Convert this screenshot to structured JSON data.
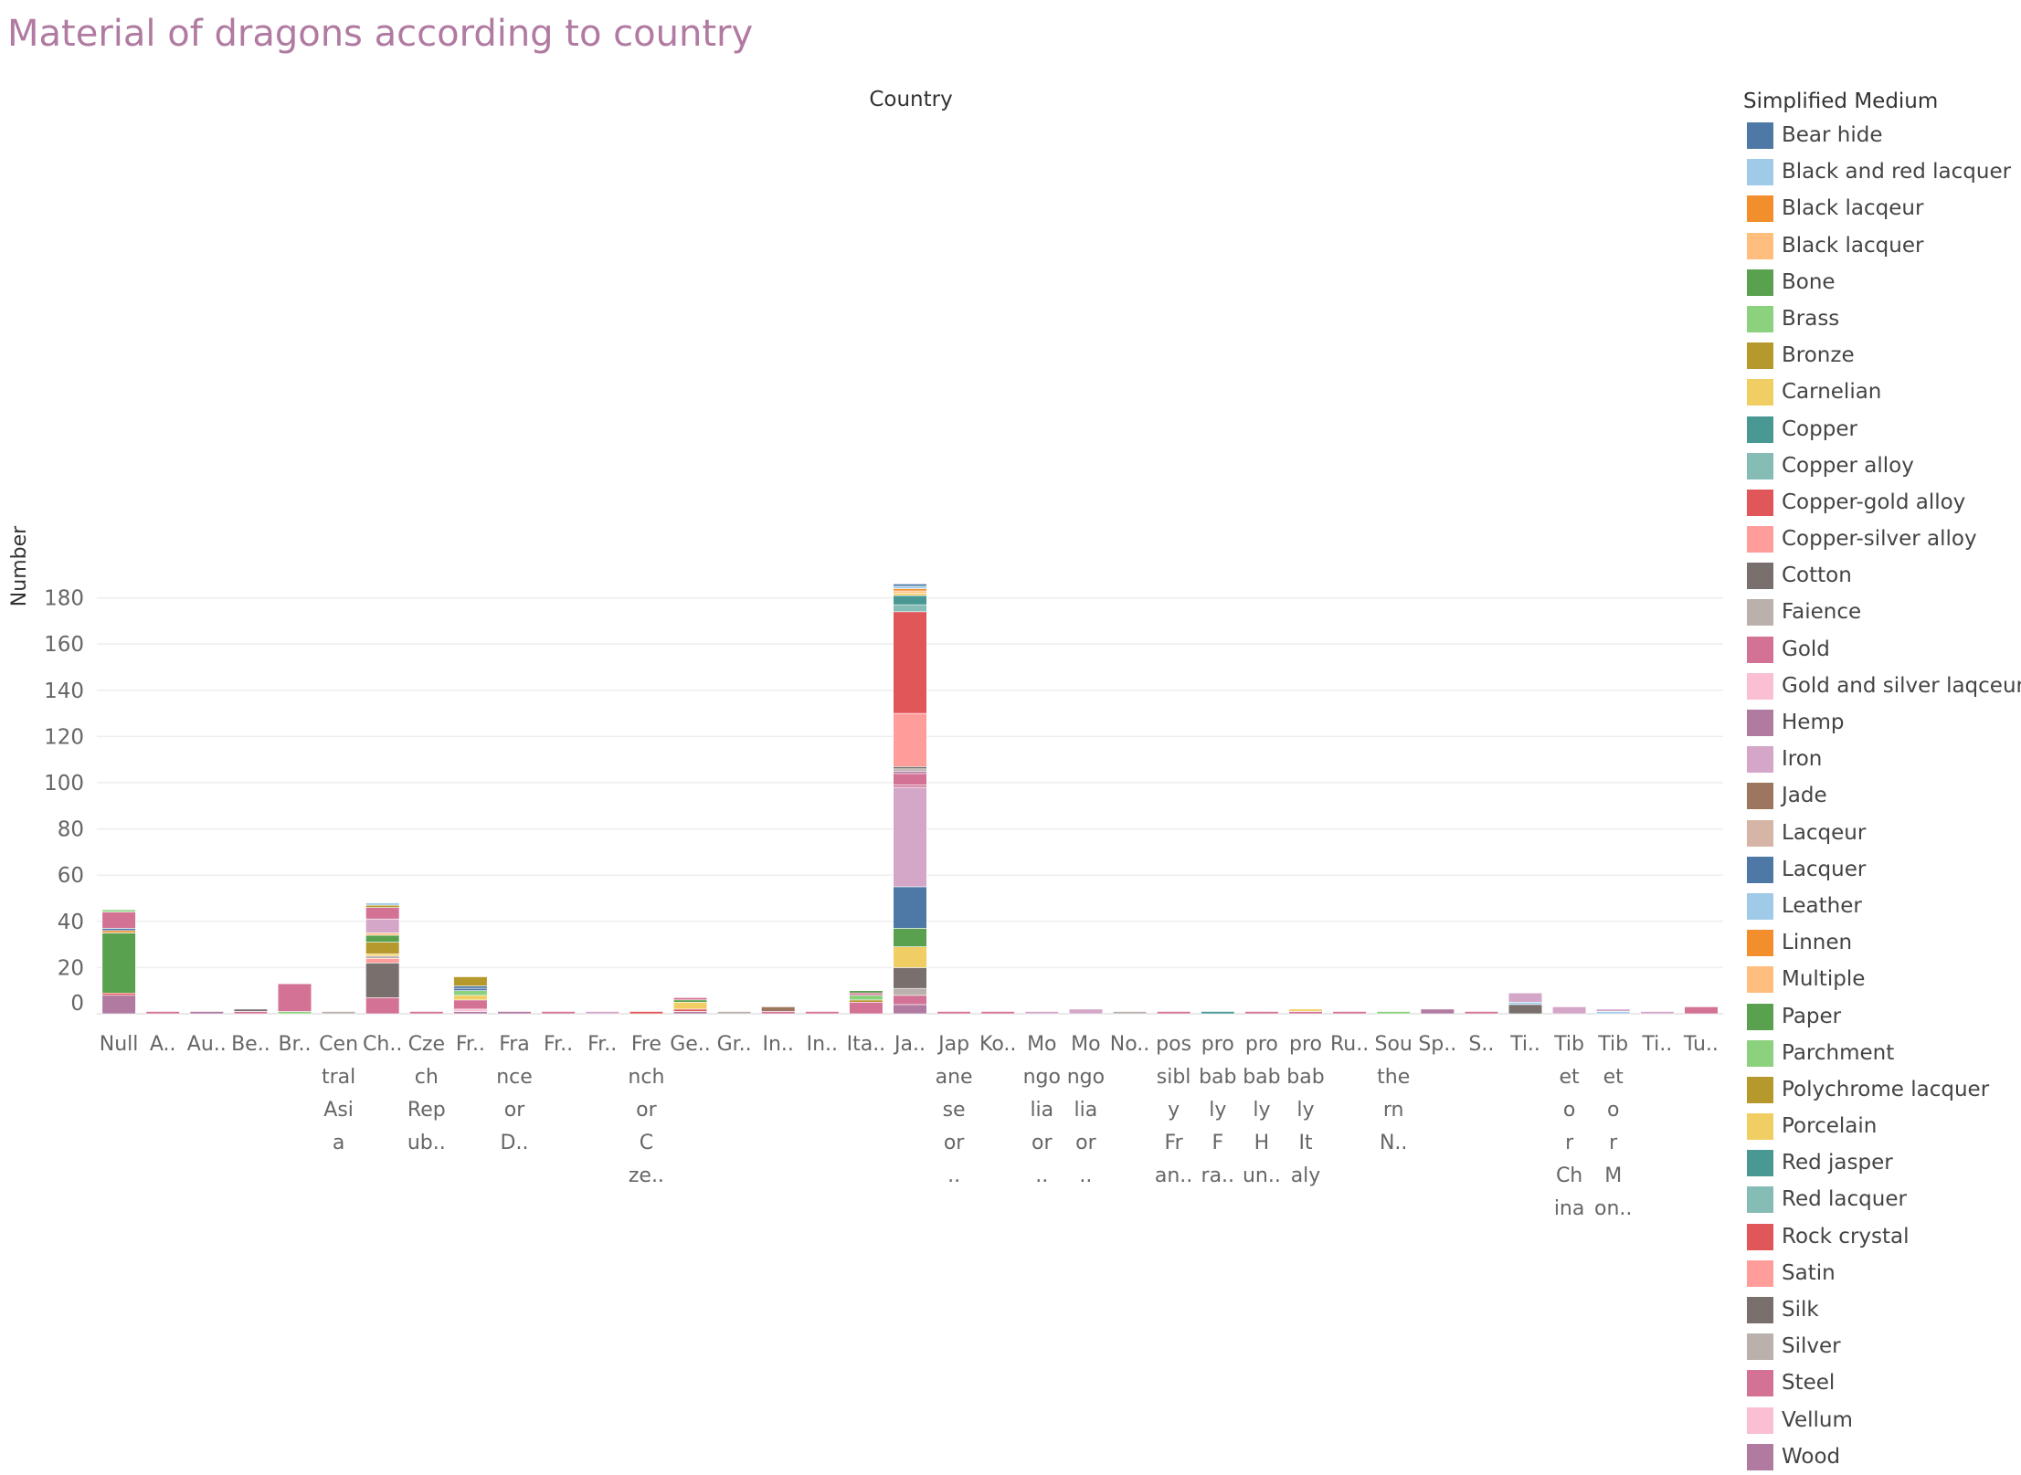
{
  "title": "Material of dragons according to country",
  "legend": {
    "title": "Simplified Medium",
    "items": [
      {
        "name": "Bear hide",
        "color": "#4e79a7"
      },
      {
        "name": "Black and red lacquer",
        "color": "#a0cbe8"
      },
      {
        "name": "Black lacqeur",
        "color": "#f28e2b"
      },
      {
        "name": "Black lacquer",
        "color": "#ffbe7d"
      },
      {
        "name": "Bone",
        "color": "#59a14f"
      },
      {
        "name": "Brass",
        "color": "#8cd17d"
      },
      {
        "name": "Bronze",
        "color": "#b6992d"
      },
      {
        "name": "Carnelian",
        "color": "#f1ce63"
      },
      {
        "name": "Copper",
        "color": "#499894"
      },
      {
        "name": "Copper alloy",
        "color": "#86bcb6"
      },
      {
        "name": "Copper-gold alloy",
        "color": "#e15759"
      },
      {
        "name": "Copper-silver alloy",
        "color": "#ff9d9a"
      },
      {
        "name": "Cotton",
        "color": "#79706e"
      },
      {
        "name": "Faience",
        "color": "#bab0ac"
      },
      {
        "name": "Gold",
        "color": "#d37295"
      },
      {
        "name": "Gold and silver laqceur",
        "color": "#fabfd2"
      },
      {
        "name": "Hemp",
        "color": "#b07aa1"
      },
      {
        "name": "Iron",
        "color": "#d4a6c8"
      },
      {
        "name": "Jade",
        "color": "#9d7660"
      },
      {
        "name": "Lacqeur",
        "color": "#d7b5a6"
      },
      {
        "name": "Lacquer",
        "color": "#4e79a7"
      },
      {
        "name": "Leather",
        "color": "#a0cbe8"
      },
      {
        "name": "Linnen",
        "color": "#f28e2b"
      },
      {
        "name": "Multiple",
        "color": "#ffbe7d"
      },
      {
        "name": "Paper",
        "color": "#59a14f"
      },
      {
        "name": "Parchment",
        "color": "#8cd17d"
      },
      {
        "name": "Polychrome lacquer",
        "color": "#b6992d"
      },
      {
        "name": "Porcelain",
        "color": "#f1ce63"
      },
      {
        "name": "Red jasper",
        "color": "#499894"
      },
      {
        "name": "Red lacquer",
        "color": "#86bcb6"
      },
      {
        "name": "Rock crystal",
        "color": "#e15759"
      },
      {
        "name": "Satin",
        "color": "#ff9d9a"
      },
      {
        "name": "Silk",
        "color": "#79706e"
      },
      {
        "name": "Silver",
        "color": "#bab0ac"
      },
      {
        "name": "Steel",
        "color": "#d37295"
      },
      {
        "name": "Vellum",
        "color": "#fabfd2"
      },
      {
        "name": "Wood",
        "color": "#b07aa1"
      }
    ]
  },
  "chart_data": {
    "type": "bar",
    "stacked": true,
    "title": "",
    "xlabel": "Country",
    "ylabel": "Number",
    "ylim": [
      0,
      190
    ],
    "yticks": [
      0,
      20,
      40,
      60,
      80,
      100,
      120,
      140,
      160,
      180
    ],
    "grid": true,
    "legend_position": "right",
    "categories": [
      {
        "label": "Null",
        "stack": [
          [
            "Wood",
            8
          ],
          [
            "Copper-gold alloy",
            1
          ],
          [
            "Bone",
            26
          ],
          [
            "Black lacqeur",
            1
          ],
          [
            "Lacquer",
            1
          ],
          [
            "Steel",
            7
          ],
          [
            "Brass",
            1
          ]
        ]
      },
      {
        "label": "A..",
        "stack": [
          [
            "Steel",
            1
          ]
        ]
      },
      {
        "label": "Au..",
        "stack": [
          [
            "Hemp",
            1
          ]
        ]
      },
      {
        "label": "Be..",
        "stack": [
          [
            "Steel",
            1
          ],
          [
            "Cotton",
            1
          ]
        ]
      },
      {
        "label": "Br..",
        "stack": [
          [
            "Brass",
            1
          ],
          [
            "Steel",
            12
          ]
        ]
      },
      {
        "label": "Cen tral Asi a",
        "stack": [
          [
            "Faience",
            1
          ]
        ]
      },
      {
        "label": "Ch..",
        "stack": [
          [
            "Steel",
            7
          ],
          [
            "Silk",
            15
          ],
          [
            "Satin",
            2
          ],
          [
            "Silver",
            1
          ],
          [
            "Porcelain",
            1
          ],
          [
            "Polychrome lacquer",
            5
          ],
          [
            "Paper",
            3
          ],
          [
            "Multiple",
            1
          ],
          [
            "Iron",
            6
          ],
          [
            "Gold",
            5
          ],
          [
            "Bronze",
            1
          ],
          [
            "Leather",
            1
          ]
        ]
      },
      {
        "label": "Cze ch Rep ub..",
        "stack": [
          [
            "Steel",
            1
          ]
        ]
      },
      {
        "label": "Fr..",
        "stack": [
          [
            "Hemp",
            1
          ],
          [
            "Vellum",
            1
          ],
          [
            "Steel",
            4
          ],
          [
            "Porcelain",
            2
          ],
          [
            "Brass",
            2
          ],
          [
            "Lacquer",
            1
          ],
          [
            "Bear hide",
            1
          ],
          [
            "Bronze",
            4
          ]
        ]
      },
      {
        "label": "Fra nce or D..",
        "stack": [
          [
            "Hemp",
            1
          ]
        ]
      },
      {
        "label": "Fr..",
        "stack": [
          [
            "Steel",
            1
          ]
        ]
      },
      {
        "label": "Fr..",
        "stack": [
          [
            "Iron",
            1
          ]
        ]
      },
      {
        "label": "Fre nch or C ze..",
        "stack": [
          [
            "Copper-gold alloy",
            1
          ]
        ]
      },
      {
        "label": "Ge..",
        "stack": [
          [
            "Hemp",
            1
          ],
          [
            "Copper-gold alloy",
            1
          ],
          [
            "Carnelian",
            3
          ],
          [
            "Bone",
            1
          ],
          [
            "Steel",
            1
          ]
        ]
      },
      {
        "label": "Gr..",
        "stack": [
          [
            "Faience",
            1
          ]
        ]
      },
      {
        "label": "In..",
        "stack": [
          [
            "Steel",
            1
          ],
          [
            "Jade",
            2
          ]
        ]
      },
      {
        "label": "In..",
        "stack": [
          [
            "Steel",
            1
          ]
        ]
      },
      {
        "label": "Ita..",
        "stack": [
          [
            "Steel",
            5
          ],
          [
            "Bronze",
            1
          ],
          [
            "Brass",
            2
          ],
          [
            "Gold",
            1
          ],
          [
            "Bone",
            1
          ]
        ]
      },
      {
        "label": "Ja..",
        "stack": [
          [
            "Wood",
            4
          ],
          [
            "Steel",
            4
          ],
          [
            "Silver",
            3
          ],
          [
            "Silk",
            9
          ],
          [
            "Porcelain",
            9
          ],
          [
            "Paper",
            8
          ],
          [
            "Lacquer",
            18
          ],
          [
            "Iron",
            43
          ],
          [
            "Gold",
            1
          ],
          [
            "Steel",
            5
          ],
          [
            "Hemp",
            1
          ],
          [
            "Faience",
            1
          ],
          [
            "Cotton",
            1
          ],
          [
            "Copper-silver alloy",
            23
          ],
          [
            "Copper-gold alloy",
            44
          ],
          [
            "Copper alloy",
            3
          ],
          [
            "Copper",
            4
          ],
          [
            "Carnelian",
            1
          ],
          [
            "Black lacquer",
            1
          ],
          [
            "Black lacqeur",
            1
          ],
          [
            "Black and red lacquer",
            1
          ],
          [
            "Bear hide",
            1
          ]
        ]
      },
      {
        "label": "Jap ane se or ..",
        "stack": [
          [
            "Steel",
            1
          ]
        ]
      },
      {
        "label": "Ko..",
        "stack": [
          [
            "Steel",
            1
          ]
        ]
      },
      {
        "label": "Mo ngo lia or ..",
        "stack": [
          [
            "Iron",
            1
          ]
        ]
      },
      {
        "label": "Mo ngo lia or ..",
        "stack": [
          [
            "Iron",
            2
          ]
        ]
      },
      {
        "label": "No..",
        "stack": [
          [
            "Faience",
            1
          ]
        ]
      },
      {
        "label": "pos sibl y Fr an..",
        "stack": [
          [
            "Steel",
            1
          ]
        ]
      },
      {
        "label": "pro bab ly F ra..",
        "stack": [
          [
            "Red jasper",
            1
          ]
        ]
      },
      {
        "label": "pro bab ly H un..",
        "stack": [
          [
            "Steel",
            1
          ]
        ]
      },
      {
        "label": "pro bab ly It aly",
        "stack": [
          [
            "Steel",
            1
          ],
          [
            "Porcelain",
            1
          ]
        ]
      },
      {
        "label": "Ru..",
        "stack": [
          [
            "Steel",
            1
          ]
        ]
      },
      {
        "label": "Sou the rn N..",
        "stack": [
          [
            "Brass",
            1
          ]
        ]
      },
      {
        "label": "Sp..",
        "stack": [
          [
            "Hemp",
            2
          ]
        ]
      },
      {
        "label": "S..",
        "stack": [
          [
            "Steel",
            1
          ]
        ]
      },
      {
        "label": "Ti..",
        "stack": [
          [
            "Silk",
            4
          ],
          [
            "Leather",
            1
          ],
          [
            "Iron",
            4
          ]
        ]
      },
      {
        "label": "Tib et o r Ch ina",
        "stack": [
          [
            "Iron",
            3
          ]
        ]
      },
      {
        "label": "Tib et o r M on..",
        "stack": [
          [
            "Leather",
            1
          ],
          [
            "Iron",
            1
          ]
        ]
      },
      {
        "label": "Ti..",
        "stack": [
          [
            "Iron",
            1
          ]
        ]
      },
      {
        "label": "Tu..",
        "stack": [
          [
            "Steel",
            3
          ]
        ]
      }
    ]
  }
}
